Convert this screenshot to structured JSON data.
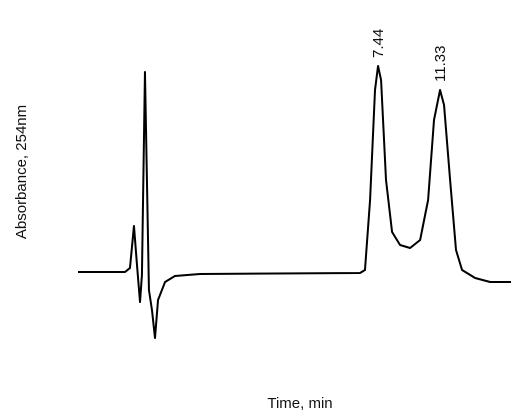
{
  "chart_data": {
    "type": "line",
    "x_label": "Time, min",
    "y_label": "Absorbance, 254nm",
    "x": [
      -11.38,
      -8.43,
      -8.12,
      -7.87,
      -7.68,
      -7.49,
      -7.37,
      -7.18,
      -6.93,
      -6.74,
      -6.55,
      -6.36,
      -5.92,
      -5.3,
      -3.73,
      6.31,
      6.62,
      6.94,
      7.25,
      7.44,
      7.63,
      7.94,
      8.32,
      8.82,
      9.45,
      10.08,
      10.58,
      10.95,
      11.33,
      11.58,
      11.96,
      12.33,
      12.71,
      13.53,
      14.47,
      15.78
    ],
    "values": [
      0,
      0,
      4,
      46,
      7,
      -30,
      -3,
      200,
      -18,
      -38,
      -66,
      -28,
      -10,
      -4,
      -2,
      -1,
      2,
      72,
      182,
      206,
      192,
      92,
      40,
      27,
      24,
      32,
      72,
      152,
      182,
      167,
      92,
      22,
      2,
      -6,
      -10,
      -10
    ],
    "color": "#000000",
    "xlim": [
      -11.38,
      15.78
    ],
    "ylim": [
      -70,
      220
    ],
    "annotations": [
      7.44,
      11.33
    ]
  }
}
